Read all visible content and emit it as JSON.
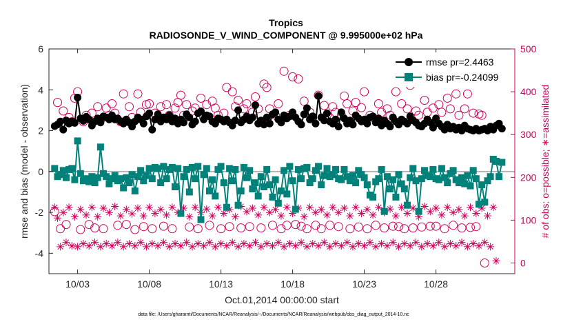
{
  "chart_data": {
    "type": "line",
    "title": "Tropics",
    "subtitle": "RADIOSONDE_V_WIND_COMPONENT @ 9.995000e+02 hPa",
    "xlabel": "Oct.01,2014 00:00:00 start",
    "ylabel": "rmse and bias (model - observation)",
    "y2label": "# of obs: o=possible; ∗=assimilated",
    "footnote": "data file: /Users/gharamti/Documents/NCAR/Reanalysis/~/Documents/NCAR/Reanalysis/webpub/obs_diag_output_2014-10.nc",
    "xlim": [
      1,
      33.5
    ],
    "ylim": [
      -5,
      6
    ],
    "y2lim": [
      -25,
      500
    ],
    "xticks": [
      3,
      8,
      13,
      18,
      23,
      28
    ],
    "xtick_labels": [
      "10/03",
      "10/08",
      "10/13",
      "10/18",
      "10/23",
      "10/28"
    ],
    "yticks": [
      -4,
      -2,
      0,
      2,
      4,
      6
    ],
    "ytick_labels": [
      "-4",
      "-2",
      "0",
      "2",
      "4",
      "6"
    ],
    "y2ticks": [
      0,
      100,
      200,
      300,
      400,
      500
    ],
    "y2tick_labels": [
      "0",
      "100",
      "200",
      "300",
      "400",
      "500"
    ],
    "colors": {
      "rmse": "#000000",
      "bias": "#00827a",
      "obs": "#d1005d",
      "zero": "#b3b3b3"
    },
    "legend": {
      "location": "top-right",
      "entries": [
        "rmse pr=2.4463",
        "bias pr=-0.24099"
      ]
    },
    "series": [
      {
        "name": "rmse pr=2.4463",
        "marker": "circle",
        "values": [
          2.22,
          2.3,
          2.45,
          2.05,
          2.5,
          2.35,
          2.45,
          2.38,
          3.62,
          2.6,
          2.48,
          2.68,
          2.55,
          2.25,
          2.45,
          2.6,
          2.4,
          2.7,
          2.65,
          2.55,
          2.75,
          2.55,
          2.6,
          2.45,
          2.35,
          2.55,
          2.4,
          2.2,
          2.45,
          2.65,
          2.55,
          2.35,
          2.7,
          2.85,
          2.05,
          2.55,
          2.8,
          2.45,
          2.65,
          2.55,
          2.75,
          2.45,
          2.6,
          2.35,
          2.55,
          2.4,
          2.8,
          2.65,
          2.3,
          2.45,
          2.85,
          2.95,
          2.55,
          2.75,
          2.7,
          2.45,
          2.35,
          2.6,
          2.55,
          2.45,
          2.55,
          2.4,
          2.25,
          2.5,
          3.0,
          2.4,
          2.55,
          2.7,
          2.5,
          2.65,
          3.25,
          2.35,
          2.5,
          2.3,
          2.65,
          2.35,
          2.8,
          2.9,
          2.55,
          2.4,
          2.75,
          2.6,
          2.7,
          2.9,
          2.65,
          2.45,
          2.3,
          2.8,
          3.1,
          2.55,
          2.7,
          2.35,
          3.7,
          2.65,
          2.5,
          2.85,
          2.45,
          2.35,
          2.55,
          2.2,
          2.9,
          2.6,
          2.35,
          2.5,
          2.3,
          2.75,
          2.6,
          2.45,
          2.55,
          2.35,
          2.65,
          2.7,
          2.4,
          2.6,
          2.25,
          2.5,
          2.35,
          2.2,
          2.65,
          2.45,
          2.3,
          2.55,
          2.45,
          2.35,
          2.7,
          2.5,
          2.4,
          2.25,
          2.2,
          2.35,
          2.55,
          2.4,
          2.15,
          2.6,
          2.35,
          2.2,
          2.05,
          2.3,
          2.1,
          2.2,
          2.05,
          2.15,
          2.0,
          2.25,
          2.1,
          2.05,
          2.0,
          2.1,
          2.0,
          2.05,
          2.1,
          2.0,
          2.2,
          2.05,
          2.25,
          2.35,
          2.1
        ]
      },
      {
        "name": "bias pr=-0.24099",
        "marker": "square",
        "values": [
          0.15,
          -0.25,
          -0.15,
          0.05,
          -0.3,
          0.1,
          0.15,
          -0.4,
          1.5,
          -0.1,
          -0.45,
          -0.35,
          -0.5,
          -0.25,
          -0.55,
          -0.3,
          1.2,
          -0.1,
          -0.25,
          -0.6,
          -0.35,
          -0.2,
          -0.45,
          -0.35,
          -0.8,
          -0.3,
          -0.55,
          -0.15,
          -0.95,
          -0.25,
          0.05,
          -0.45,
          -0.2,
          0.15,
          -0.35,
          0.2,
          0.15,
          -0.55,
          0.25,
          -0.35,
          0.1,
          0.2,
          -0.75,
          0.15,
          -2.05,
          -0.25,
          0.1,
          -1.0,
          0.2,
          -0.35,
          0.25,
          -2.35,
          -0.15,
          0.15,
          -0.95,
          -0.4,
          -1.2,
          0.1,
          0.25,
          -0.55,
          -1.75,
          0.15,
          -0.45,
          0.1,
          -1.65,
          -0.95,
          0.2,
          -0.3,
          0.05,
          -0.85,
          -0.55,
          -1.2,
          -0.25,
          -0.75,
          0.1,
          -0.65,
          -1.25,
          -0.4,
          -1.55,
          -0.95,
          0.05,
          -1.1,
          0.25,
          -0.45,
          -1.85,
          0.1,
          -0.35,
          0.15,
          0.2,
          -0.55,
          -0.35,
          0.05,
          0.25,
          -0.65,
          -0.2,
          0.15,
          -0.25,
          -0.15,
          0.1,
          -0.35,
          -0.4,
          0.1,
          -0.25,
          -0.45,
          -0.2,
          -0.55,
          0.05,
          -0.15,
          -0.3,
          -0.65,
          -1.15,
          -1.25,
          -0.5,
          -0.35,
          0.1,
          -1.95,
          -0.25,
          -0.85,
          -0.4,
          -1.25,
          -0.15,
          -0.6,
          -0.85,
          -1.65,
          -0.3,
          0.15,
          -0.45,
          -1.95,
          -0.35,
          0.05,
          -0.2,
          -0.25,
          0.1,
          -0.35,
          -0.4,
          0.15,
          -0.3,
          -0.55,
          -0.1,
          0.05,
          -0.4,
          -0.55,
          -0.3,
          -0.6,
          -0.2,
          -0.7,
          0.05,
          -0.35,
          -1.6,
          -0.65,
          -1.5,
          -0.45,
          -0.25,
          0.6,
          0.5,
          -0.25,
          0.45
        ]
      },
      {
        "name": "possible",
        "axis": "right",
        "marker": "open-circle",
        "values": [
          120,
          375,
          80,
          355,
          90,
          340,
          330,
          385,
          400,
          78,
          330,
          345,
          90,
          350,
          82,
          365,
          335,
          80,
          362,
          345,
          372,
          350,
          88,
          330,
          395,
          90,
          365,
          340,
          78,
          395,
          352,
          85,
          370,
          372,
          80,
          350,
          338,
          365,
          86,
          370,
          345,
          80,
          362,
          375,
          392,
          345,
          370,
          84,
          355,
          362,
          80,
          385,
          340,
          370,
          88,
          378,
          362,
          345,
          80,
          350,
          410,
          85,
          400,
          365,
          380,
          82,
          360,
          372,
          85,
          352,
          388,
          360,
          82,
          418,
          410,
          360,
          88,
          345,
          372,
          80,
          448,
          88,
          345,
          435,
          90,
          430,
          86,
          378,
          80,
          352,
          340,
          88,
          392,
          80,
          368,
          346,
          88,
          365,
          352,
          85,
          345,
          390,
          372,
          80,
          355,
          375,
          84,
          363,
          400,
          80,
          345,
          340,
          88,
          372,
          352,
          82,
          360,
          345,
          86,
          400,
          85,
          372,
          80,
          360,
          415,
          82,
          355,
          345,
          84,
          380,
          352,
          86,
          362,
          86,
          370,
          352,
          80,
          385,
          360,
          88,
          395,
          345,
          82,
          360,
          395,
          83,
          350,
          85,
          348,
          345,
          0
        ]
      },
      {
        "name": "assimilated",
        "axis": "right",
        "marker": "asterisk",
        "values": [
          130,
          105,
          38,
          118,
          48,
          130,
          40,
          108,
          38,
          125,
          45,
          112,
          40,
          130,
          48,
          108,
          38,
          128,
          45,
          118,
          40,
          132,
          48,
          110,
          38,
          125,
          45,
          115,
          40,
          128,
          48,
          110,
          38,
          130,
          45,
          116,
          40,
          125,
          48,
          112,
          38,
          130,
          45,
          118,
          40,
          128,
          48,
          108,
          38,
          130,
          45,
          118,
          40,
          126,
          48,
          110,
          38,
          130,
          45,
          116,
          40,
          125,
          48,
          108,
          38,
          132,
          45,
          120,
          40,
          128,
          48,
          112,
          38,
          130,
          45,
          118,
          40,
          125,
          48,
          110,
          38,
          130,
          45,
          116,
          40,
          128,
          48,
          108,
          38,
          130,
          45,
          118,
          40,
          125,
          48,
          112,
          38,
          130,
          45,
          118,
          40,
          128,
          48,
          110,
          38,
          130,
          45,
          116,
          40,
          125,
          48,
          112,
          38,
          130,
          45,
          118,
          40,
          126,
          48,
          110,
          38,
          130,
          45,
          116,
          40,
          128,
          48,
          108,
          38,
          132,
          45,
          120,
          40,
          128,
          48,
          112,
          38,
          130,
          45,
          118,
          40,
          125,
          48,
          110,
          38,
          130,
          45,
          116,
          40,
          128,
          48,
          110,
          38,
          130,
          5
        ]
      }
    ]
  }
}
